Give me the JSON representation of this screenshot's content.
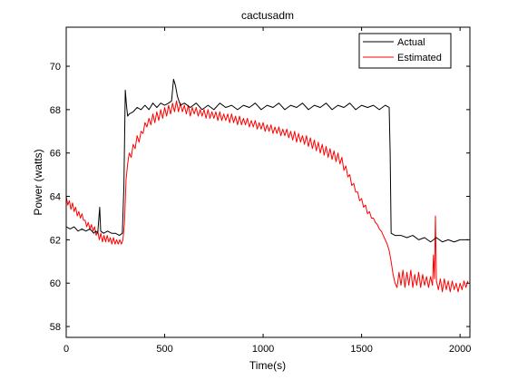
{
  "chart_data": {
    "type": "line",
    "title": "cactusadm",
    "xlabel": "Time(s)",
    "ylabel": "Power (watts)",
    "xlim": [
      0,
      2050
    ],
    "ylim": [
      57.5,
      71.8
    ],
    "xticks": [
      0,
      500,
      1000,
      1500,
      2000
    ],
    "yticks": [
      58,
      60,
      62,
      64,
      66,
      68,
      70
    ],
    "grid": false,
    "legend_position": "top-right",
    "series": [
      {
        "name": "Actual",
        "color": "#000000",
        "points": [
          [
            0,
            62.6
          ],
          [
            20,
            62.5
          ],
          [
            40,
            62.6
          ],
          [
            60,
            62.4
          ],
          [
            80,
            62.5
          ],
          [
            100,
            62.4
          ],
          [
            120,
            62.5
          ],
          [
            140,
            62.3
          ],
          [
            150,
            62.4
          ],
          [
            160,
            62.3
          ],
          [
            170,
            63.5
          ],
          [
            175,
            62.4
          ],
          [
            190,
            62.3
          ],
          [
            210,
            62.4
          ],
          [
            230,
            62.3
          ],
          [
            250,
            62.3
          ],
          [
            270,
            62.2
          ],
          [
            285,
            62.3
          ],
          [
            293,
            64.5
          ],
          [
            300,
            68.9
          ],
          [
            306,
            68.2
          ],
          [
            312,
            67.7
          ],
          [
            320,
            67.8
          ],
          [
            340,
            67.9
          ],
          [
            360,
            68.1
          ],
          [
            380,
            68.0
          ],
          [
            400,
            68.2
          ],
          [
            420,
            68.0
          ],
          [
            440,
            68.3
          ],
          [
            460,
            68.1
          ],
          [
            480,
            68.3
          ],
          [
            500,
            68.2
          ],
          [
            520,
            68.3
          ],
          [
            535,
            68.4
          ],
          [
            545,
            69.4
          ],
          [
            555,
            69.1
          ],
          [
            565,
            68.6
          ],
          [
            580,
            68.2
          ],
          [
            600,
            68.3
          ],
          [
            630,
            68.1
          ],
          [
            660,
            68.3
          ],
          [
            690,
            68.0
          ],
          [
            720,
            68.2
          ],
          [
            750,
            68.0
          ],
          [
            780,
            68.3
          ],
          [
            810,
            68.1
          ],
          [
            840,
            68.2
          ],
          [
            870,
            68.0
          ],
          [
            900,
            68.2
          ],
          [
            930,
            68.1
          ],
          [
            960,
            68.3
          ],
          [
            990,
            68.0
          ],
          [
            1020,
            68.2
          ],
          [
            1050,
            68.1
          ],
          [
            1080,
            68.3
          ],
          [
            1110,
            68.0
          ],
          [
            1140,
            68.2
          ],
          [
            1170,
            68.1
          ],
          [
            1200,
            68.3
          ],
          [
            1230,
            68.0
          ],
          [
            1260,
            68.2
          ],
          [
            1290,
            68.1
          ],
          [
            1320,
            68.3
          ],
          [
            1350,
            68.0
          ],
          [
            1380,
            68.2
          ],
          [
            1410,
            68.1
          ],
          [
            1440,
            68.3
          ],
          [
            1470,
            68.0
          ],
          [
            1500,
            68.2
          ],
          [
            1530,
            68.1
          ],
          [
            1560,
            68.2
          ],
          [
            1590,
            68.0
          ],
          [
            1620,
            68.2
          ],
          [
            1640,
            68.1
          ],
          [
            1645,
            66.0
          ],
          [
            1650,
            62.3
          ],
          [
            1670,
            62.2
          ],
          [
            1700,
            62.2
          ],
          [
            1730,
            62.1
          ],
          [
            1760,
            62.2
          ],
          [
            1790,
            62.0
          ],
          [
            1820,
            62.1
          ],
          [
            1850,
            61.9
          ],
          [
            1880,
            62.1
          ],
          [
            1910,
            61.9
          ],
          [
            1940,
            62.0
          ],
          [
            1970,
            61.9
          ],
          [
            2000,
            62.0
          ],
          [
            2040,
            62.0
          ]
        ]
      },
      {
        "name": "Estimated",
        "color": "#ff0000",
        "points": [
          [
            0,
            64.0
          ],
          [
            8,
            63.6
          ],
          [
            16,
            63.8
          ],
          [
            24,
            63.4
          ],
          [
            32,
            63.7
          ],
          [
            40,
            63.3
          ],
          [
            48,
            63.5
          ],
          [
            56,
            63.1
          ],
          [
            64,
            63.3
          ],
          [
            72,
            63.0
          ],
          [
            80,
            63.2
          ],
          [
            88,
            62.9
          ],
          [
            96,
            62.9
          ],
          [
            104,
            62.6
          ],
          [
            112,
            62.8
          ],
          [
            120,
            62.5
          ],
          [
            128,
            62.7
          ],
          [
            136,
            62.4
          ],
          [
            144,
            62.6
          ],
          [
            152,
            62.2
          ],
          [
            160,
            62.4
          ],
          [
            168,
            62.0
          ],
          [
            176,
            62.3
          ],
          [
            184,
            61.9
          ],
          [
            192,
            62.2
          ],
          [
            200,
            61.9
          ],
          [
            208,
            62.2
          ],
          [
            216,
            61.9
          ],
          [
            224,
            62.1
          ],
          [
            232,
            61.8
          ],
          [
            240,
            62.1
          ],
          [
            248,
            61.8
          ],
          [
            256,
            62.0
          ],
          [
            264,
            61.8
          ],
          [
            272,
            62.0
          ],
          [
            280,
            61.8
          ],
          [
            288,
            62.0
          ],
          [
            296,
            62.8
          ],
          [
            304,
            64.8
          ],
          [
            312,
            65.5
          ],
          [
            320,
            66.0
          ],
          [
            330,
            65.8
          ],
          [
            340,
            66.4
          ],
          [
            350,
            66.2
          ],
          [
            360,
            66.8
          ],
          [
            370,
            66.5
          ],
          [
            380,
            67.0
          ],
          [
            390,
            66.9
          ],
          [
            400,
            67.4
          ],
          [
            410,
            67.2
          ],
          [
            420,
            67.6
          ],
          [
            430,
            67.3
          ],
          [
            440,
            67.8
          ],
          [
            450,
            67.4
          ],
          [
            460,
            67.9
          ],
          [
            470,
            67.5
          ],
          [
            480,
            68.0
          ],
          [
            490,
            67.6
          ],
          [
            500,
            68.1
          ],
          [
            510,
            67.7
          ],
          [
            520,
            68.2
          ],
          [
            530,
            67.8
          ],
          [
            540,
            68.3
          ],
          [
            550,
            67.9
          ],
          [
            560,
            68.4
          ],
          [
            570,
            67.9
          ],
          [
            580,
            68.3
          ],
          [
            590,
            67.9
          ],
          [
            600,
            68.2
          ],
          [
            610,
            67.8
          ],
          [
            620,
            68.2
          ],
          [
            630,
            67.7
          ],
          [
            640,
            68.1
          ],
          [
            650,
            67.8
          ],
          [
            660,
            68.1
          ],
          [
            670,
            67.7
          ],
          [
            680,
            68.0
          ],
          [
            690,
            67.7
          ],
          [
            700,
            68.0
          ],
          [
            710,
            67.6
          ],
          [
            720,
            68.0
          ],
          [
            730,
            67.6
          ],
          [
            740,
            67.9
          ],
          [
            750,
            67.6
          ],
          [
            760,
            67.9
          ],
          [
            770,
            67.5
          ],
          [
            780,
            67.9
          ],
          [
            790,
            67.5
          ],
          [
            800,
            67.8
          ],
          [
            810,
            67.5
          ],
          [
            820,
            67.8
          ],
          [
            830,
            67.4
          ],
          [
            840,
            67.8
          ],
          [
            850,
            67.4
          ],
          [
            860,
            67.7
          ],
          [
            870,
            67.3
          ],
          [
            880,
            67.7
          ],
          [
            890,
            67.3
          ],
          [
            900,
            67.6
          ],
          [
            910,
            67.3
          ],
          [
            920,
            67.6
          ],
          [
            930,
            67.2
          ],
          [
            940,
            67.5
          ],
          [
            950,
            67.2
          ],
          [
            960,
            67.5
          ],
          [
            970,
            67.1
          ],
          [
            980,
            67.4
          ],
          [
            990,
            67.1
          ],
          [
            1000,
            67.4
          ],
          [
            1010,
            67.0
          ],
          [
            1020,
            67.3
          ],
          [
            1030,
            67.0
          ],
          [
            1040,
            67.3
          ],
          [
            1050,
            66.9
          ],
          [
            1060,
            67.2
          ],
          [
            1070,
            66.9
          ],
          [
            1080,
            67.2
          ],
          [
            1090,
            66.8
          ],
          [
            1100,
            67.1
          ],
          [
            1110,
            66.8
          ],
          [
            1120,
            67.1
          ],
          [
            1130,
            66.7
          ],
          [
            1140,
            67.0
          ],
          [
            1150,
            66.6
          ],
          [
            1160,
            67.0
          ],
          [
            1170,
            66.5
          ],
          [
            1180,
            66.9
          ],
          [
            1190,
            66.5
          ],
          [
            1200,
            66.8
          ],
          [
            1210,
            66.4
          ],
          [
            1220,
            66.8
          ],
          [
            1230,
            66.3
          ],
          [
            1240,
            66.7
          ],
          [
            1250,
            66.2
          ],
          [
            1260,
            66.6
          ],
          [
            1270,
            66.1
          ],
          [
            1280,
            66.5
          ],
          [
            1290,
            66.0
          ],
          [
            1300,
            66.4
          ],
          [
            1310,
            65.9
          ],
          [
            1320,
            66.3
          ],
          [
            1330,
            65.8
          ],
          [
            1340,
            66.2
          ],
          [
            1350,
            65.7
          ],
          [
            1360,
            66.1
          ],
          [
            1370,
            65.6
          ],
          [
            1380,
            66.0
          ],
          [
            1390,
            65.5
          ],
          [
            1400,
            65.8
          ],
          [
            1410,
            65.2
          ],
          [
            1420,
            65.4
          ],
          [
            1430,
            64.9
          ],
          [
            1440,
            65.0
          ],
          [
            1450,
            64.5
          ],
          [
            1460,
            64.6
          ],
          [
            1470,
            64.2
          ],
          [
            1480,
            64.2
          ],
          [
            1490,
            63.8
          ],
          [
            1500,
            63.9
          ],
          [
            1510,
            63.5
          ],
          [
            1520,
            63.6
          ],
          [
            1530,
            63.2
          ],
          [
            1540,
            63.3
          ],
          [
            1550,
            63.0
          ],
          [
            1560,
            63.0
          ],
          [
            1570,
            62.8
          ],
          [
            1580,
            62.7
          ],
          [
            1590,
            62.5
          ],
          [
            1600,
            62.4
          ],
          [
            1610,
            62.2
          ],
          [
            1620,
            62.0
          ],
          [
            1630,
            61.8
          ],
          [
            1640,
            61.5
          ],
          [
            1650,
            61.0
          ],
          [
            1660,
            60.4
          ],
          [
            1670,
            60.0
          ],
          [
            1680,
            59.8
          ],
          [
            1690,
            60.5
          ],
          [
            1700,
            59.9
          ],
          [
            1710,
            60.6
          ],
          [
            1720,
            59.8
          ],
          [
            1730,
            60.5
          ],
          [
            1740,
            59.9
          ],
          [
            1750,
            60.6
          ],
          [
            1760,
            59.8
          ],
          [
            1770,
            60.4
          ],
          [
            1780,
            59.9
          ],
          [
            1790,
            60.5
          ],
          [
            1800,
            59.8
          ],
          [
            1810,
            60.4
          ],
          [
            1820,
            59.9
          ],
          [
            1830,
            60.3
          ],
          [
            1840,
            59.8
          ],
          [
            1850,
            60.3
          ],
          [
            1860,
            59.9
          ],
          [
            1865,
            61.3
          ],
          [
            1870,
            60.2
          ],
          [
            1875,
            63.1
          ],
          [
            1880,
            60.1
          ],
          [
            1890,
            59.7
          ],
          [
            1900,
            60.2
          ],
          [
            1910,
            59.6
          ],
          [
            1920,
            60.2
          ],
          [
            1930,
            59.7
          ],
          [
            1940,
            60.1
          ],
          [
            1950,
            59.6
          ],
          [
            1960,
            60.1
          ],
          [
            1970,
            59.7
          ],
          [
            1980,
            60.0
          ],
          [
            1990,
            59.6
          ],
          [
            2000,
            60.0
          ],
          [
            2010,
            59.7
          ],
          [
            2020,
            60.1
          ],
          [
            2030,
            59.8
          ],
          [
            2040,
            60.1
          ]
        ]
      }
    ]
  }
}
